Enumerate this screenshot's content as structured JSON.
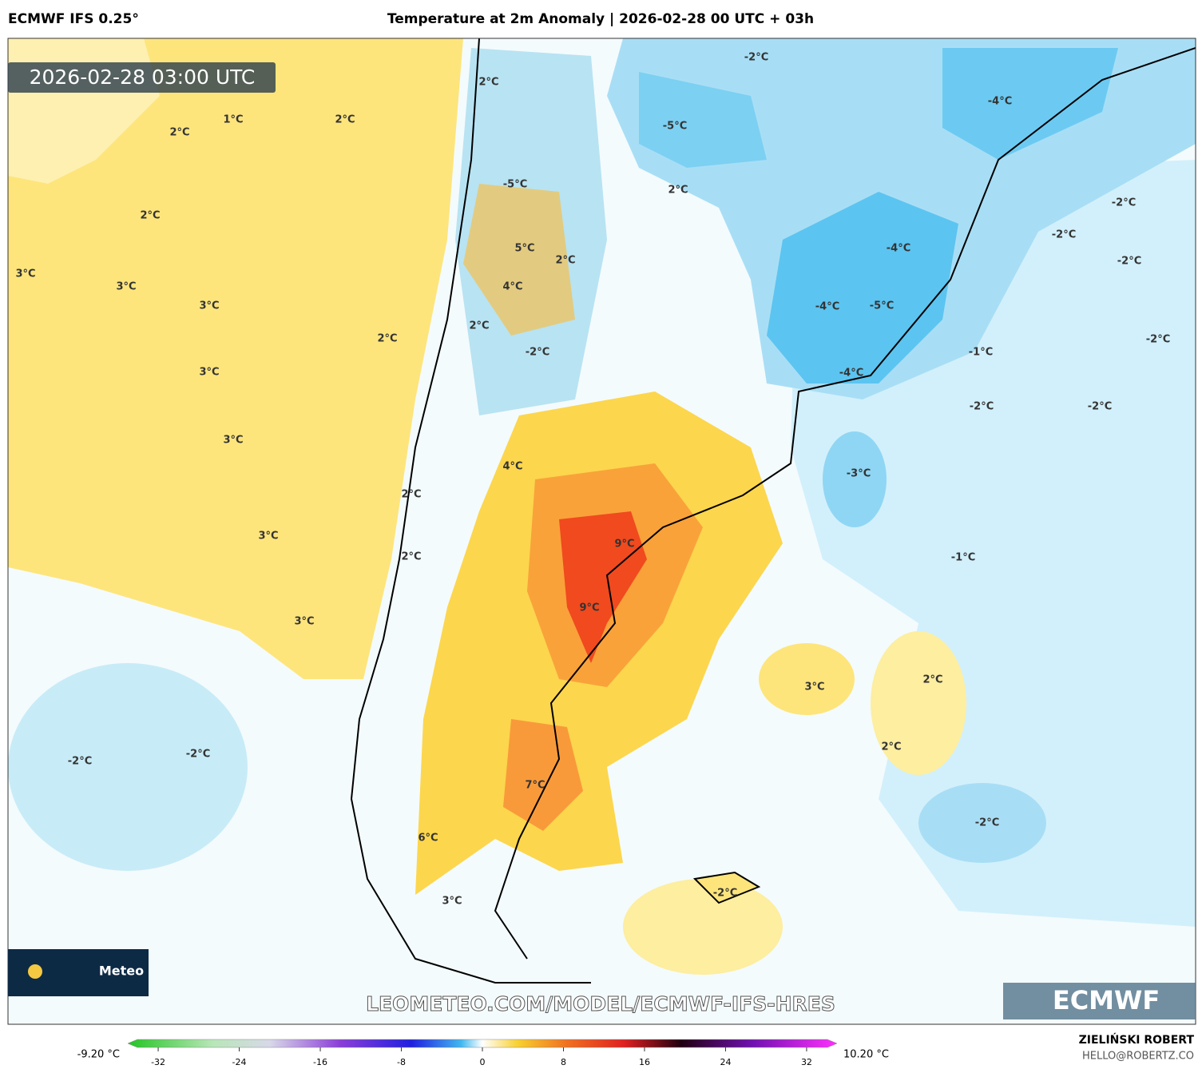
{
  "header": {
    "model": "ECMWF IFS 0.25°",
    "title": "Temperature at 2m Anomaly | 2026-02-28 00 UTC + 03h",
    "timestamp": "2026-02-28 03:00 UTC"
  },
  "map": {
    "labels": [
      "2°C",
      "1°C",
      "2°C",
      "2°C",
      "3°C",
      "3°C",
      "3°C",
      "3°C",
      "2°C",
      "3°C",
      "3°C",
      "3°C",
      "2°C",
      "-5°C",
      "5°C",
      "2°C",
      "4°C",
      "2°C",
      "-2°C",
      "4°C",
      "2°C",
      "2°C",
      "9°C",
      "9°C",
      "-2°C",
      "-5°C",
      "2°C",
      "-4°C",
      "-2°C",
      "-2°C",
      "-2°C",
      "-4°C",
      "-4°C",
      "-5°C",
      "-4°C",
      "-1°C",
      "-2°C",
      "-2°C",
      "-2°C",
      "-3°C",
      "-1°C",
      "3°C",
      "2°C",
      "2°C",
      "7°C",
      "6°C",
      "3°C",
      "-2°C",
      "-2°C",
      "-2°C",
      "-2°C"
    ]
  },
  "watermark": "LEOMETEO.COM/MODEL/ECMWF-IFS-HRES",
  "logos": {
    "ecmwf": "ECMWF",
    "meteo": "Meteo"
  },
  "colorbar": {
    "min_label": "-9.20 °C",
    "max_label": "10.20 °C",
    "lim": [
      -35,
      35
    ],
    "ticks": [
      -32,
      -24,
      -16,
      -8,
      0,
      8,
      16,
      24,
      32
    ]
  },
  "credit": {
    "name": "ZIELIŃSKI ROBERT",
    "email": "HELLO@ROBERTZ.CO"
  }
}
